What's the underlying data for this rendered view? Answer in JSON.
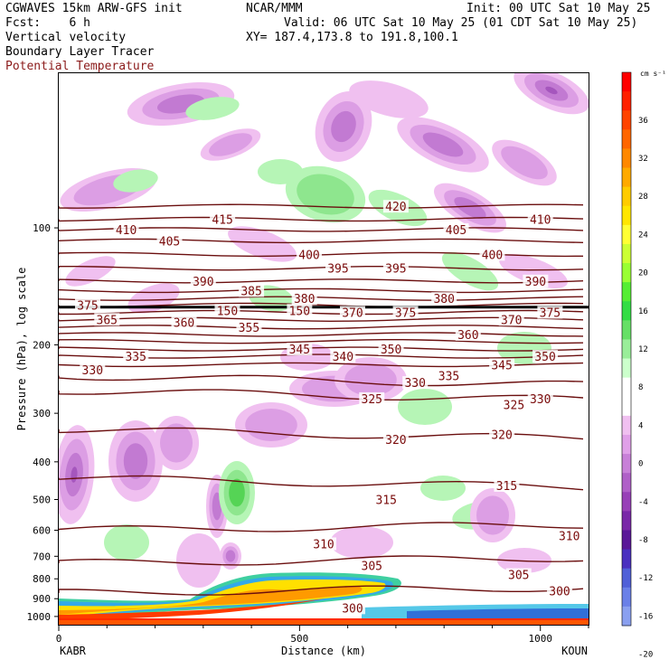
{
  "header": {
    "model": "CGWAVES 15km ARW-GFS init",
    "org": "NCAR/MMM",
    "init": "Init: 00 UTC Sat 10 May 25",
    "fcst": "Fcst:    6 h",
    "valid": "Valid: 06 UTC Sat 10 May 25 (01 CDT Sat 10 May 25)",
    "field1": "Vertical velocity",
    "field2": "Boundary Layer Tracer",
    "field3": "Potential Temperature",
    "xy": "XY= 187.4,173.8 to 191.8,100.1"
  },
  "colors": {
    "theta_line": "#6b0f0f",
    "theta_label": "#7a0b0b",
    "field3_text": "#8b1a1a"
  },
  "chart_data": {
    "type": "contour",
    "xlabel": "Distance (km)",
    "ylabel": "Pressure (hPa), log scale",
    "x_endpoints": {
      "left": "KABR",
      "right": "KOUN"
    },
    "xlim": [
      0,
      1100
    ],
    "x_ticks": [
      0,
      500,
      1000
    ],
    "y_ticks": [
      100,
      200,
      300,
      400,
      500,
      600,
      700,
      800,
      900,
      1000
    ],
    "ylim": [
      1050,
      40
    ],
    "colorbar": {
      "unit": "cm s⁻¹",
      "labels": [
        36,
        32,
        28,
        24,
        20,
        16,
        12,
        8,
        4,
        0,
        -4,
        -8,
        -12,
        -16,
        -20
      ],
      "colors": [
        "#ff0000",
        "#ff2000",
        "#ff4400",
        "#ff6600",
        "#ff8800",
        "#ffaa00",
        "#ffcc00",
        "#ffe600",
        "#ffff33",
        "#ccff33",
        "#99ff33",
        "#55ee33",
        "#33dd44",
        "#66e066",
        "#99ee99",
        "#ccffcc",
        "#ffffff",
        "#ffffff",
        "#f0c0f0",
        "#e0a0e8",
        "#c880d8",
        "#b060c8",
        "#9840b8",
        "#7a28a8",
        "#5a1898",
        "#4a30c0",
        "#5060d8",
        "#6a80e8",
        "#8aa0f0"
      ]
    },
    "theta_contours": [
      {
        "value": 420,
        "p": 88
      },
      {
        "value": 415,
        "p": 95
      },
      {
        "value": 410,
        "p": 101
      },
      {
        "value": 405,
        "p": 108
      },
      {
        "value": 400,
        "p": 117
      },
      {
        "value": 395,
        "p": 127
      },
      {
        "value": 390,
        "p": 137
      },
      {
        "value": 385,
        "p": 145
      },
      {
        "value": 380,
        "p": 152
      },
      {
        "value": 375,
        "p": 158
      },
      {
        "value": 370,
        "p": 165
      },
      {
        "value": 365,
        "p": 172
      },
      {
        "value": 360,
        "p": 180
      },
      {
        "value": 355,
        "p": 188
      },
      {
        "value": 350,
        "p": 196
      },
      {
        "value": 345,
        "p": 205
      },
      {
        "value": 340,
        "p": 214
      },
      {
        "value": 335,
        "p": 225
      },
      {
        "value": 330,
        "p": 240
      },
      {
        "value": 325,
        "p": 262
      },
      {
        "value": 320,
        "p": 330
      },
      {
        "value": 315,
        "p": 440
      },
      {
        "value": 310,
        "p": 600
      },
      {
        "value": 305,
        "p": 730
      },
      {
        "value": 300,
        "p": 870
      }
    ],
    "tropopause_p": 160,
    "labels_on_plot": [
      {
        "text": "420",
        "x": 700,
        "p": 88
      },
      {
        "text": "410",
        "x": 140,
        "p": 101
      },
      {
        "text": "405",
        "x": 230,
        "p": 108
      },
      {
        "text": "415",
        "x": 340,
        "p": 95
      },
      {
        "text": "405",
        "x": 825,
        "p": 101
      },
      {
        "text": "410",
        "x": 1000,
        "p": 95
      },
      {
        "text": "400",
        "x": 520,
        "p": 117
      },
      {
        "text": "400",
        "x": 900,
        "p": 117
      },
      {
        "text": "395",
        "x": 580,
        "p": 127
      },
      {
        "text": "395",
        "x": 700,
        "p": 127
      },
      {
        "text": "390",
        "x": 300,
        "p": 137
      },
      {
        "text": "390",
        "x": 990,
        "p": 137
      },
      {
        "text": "385",
        "x": 400,
        "p": 145
      },
      {
        "text": "380",
        "x": 510,
        "p": 152
      },
      {
        "text": "380",
        "x": 800,
        "p": 152
      },
      {
        "text": "375",
        "x": 60,
        "p": 158
      },
      {
        "text": "375",
        "x": 720,
        "p": 165
      },
      {
        "text": "375",
        "x": 1020,
        "p": 165
      },
      {
        "text": "370",
        "x": 610,
        "p": 165
      },
      {
        "text": "370",
        "x": 940,
        "p": 172
      },
      {
        "text": "365",
        "x": 100,
        "p": 172
      },
      {
        "text": "360",
        "x": 260,
        "p": 175
      },
      {
        "text": "360",
        "x": 850,
        "p": 188
      },
      {
        "text": "355",
        "x": 395,
        "p": 180
      },
      {
        "text": "350",
        "x": 690,
        "p": 205
      },
      {
        "text": "350",
        "x": 1010,
        "p": 214
      },
      {
        "text": "345",
        "x": 500,
        "p": 205
      },
      {
        "text": "345",
        "x": 920,
        "p": 225
      },
      {
        "text": "340",
        "x": 590,
        "p": 214
      },
      {
        "text": "335",
        "x": 160,
        "p": 214
      },
      {
        "text": "335",
        "x": 810,
        "p": 240
      },
      {
        "text": "330",
        "x": 70,
        "p": 232
      },
      {
        "text": "330",
        "x": 740,
        "p": 250
      },
      {
        "text": "330",
        "x": 1000,
        "p": 275
      },
      {
        "text": "325",
        "x": 650,
        "p": 275
      },
      {
        "text": "325",
        "x": 945,
        "p": 285
      },
      {
        "text": "320",
        "x": 700,
        "p": 350
      },
      {
        "text": "320",
        "x": 920,
        "p": 340
      },
      {
        "text": "315",
        "x": 680,
        "p": 500
      },
      {
        "text": "315",
        "x": 930,
        "p": 460
      },
      {
        "text": "310",
        "x": 550,
        "p": 650
      },
      {
        "text": "310",
        "x": 1060,
        "p": 620
      },
      {
        "text": "305",
        "x": 650,
        "p": 740
      },
      {
        "text": "305",
        "x": 955,
        "p": 780
      },
      {
        "text": "300",
        "x": 1040,
        "p": 860
      },
      {
        "text": "300",
        "x": 610,
        "p": 950
      },
      {
        "text": "150",
        "x": 350,
        "p": 163
      },
      {
        "text": "150",
        "x": 500,
        "p": 163
      }
    ]
  }
}
